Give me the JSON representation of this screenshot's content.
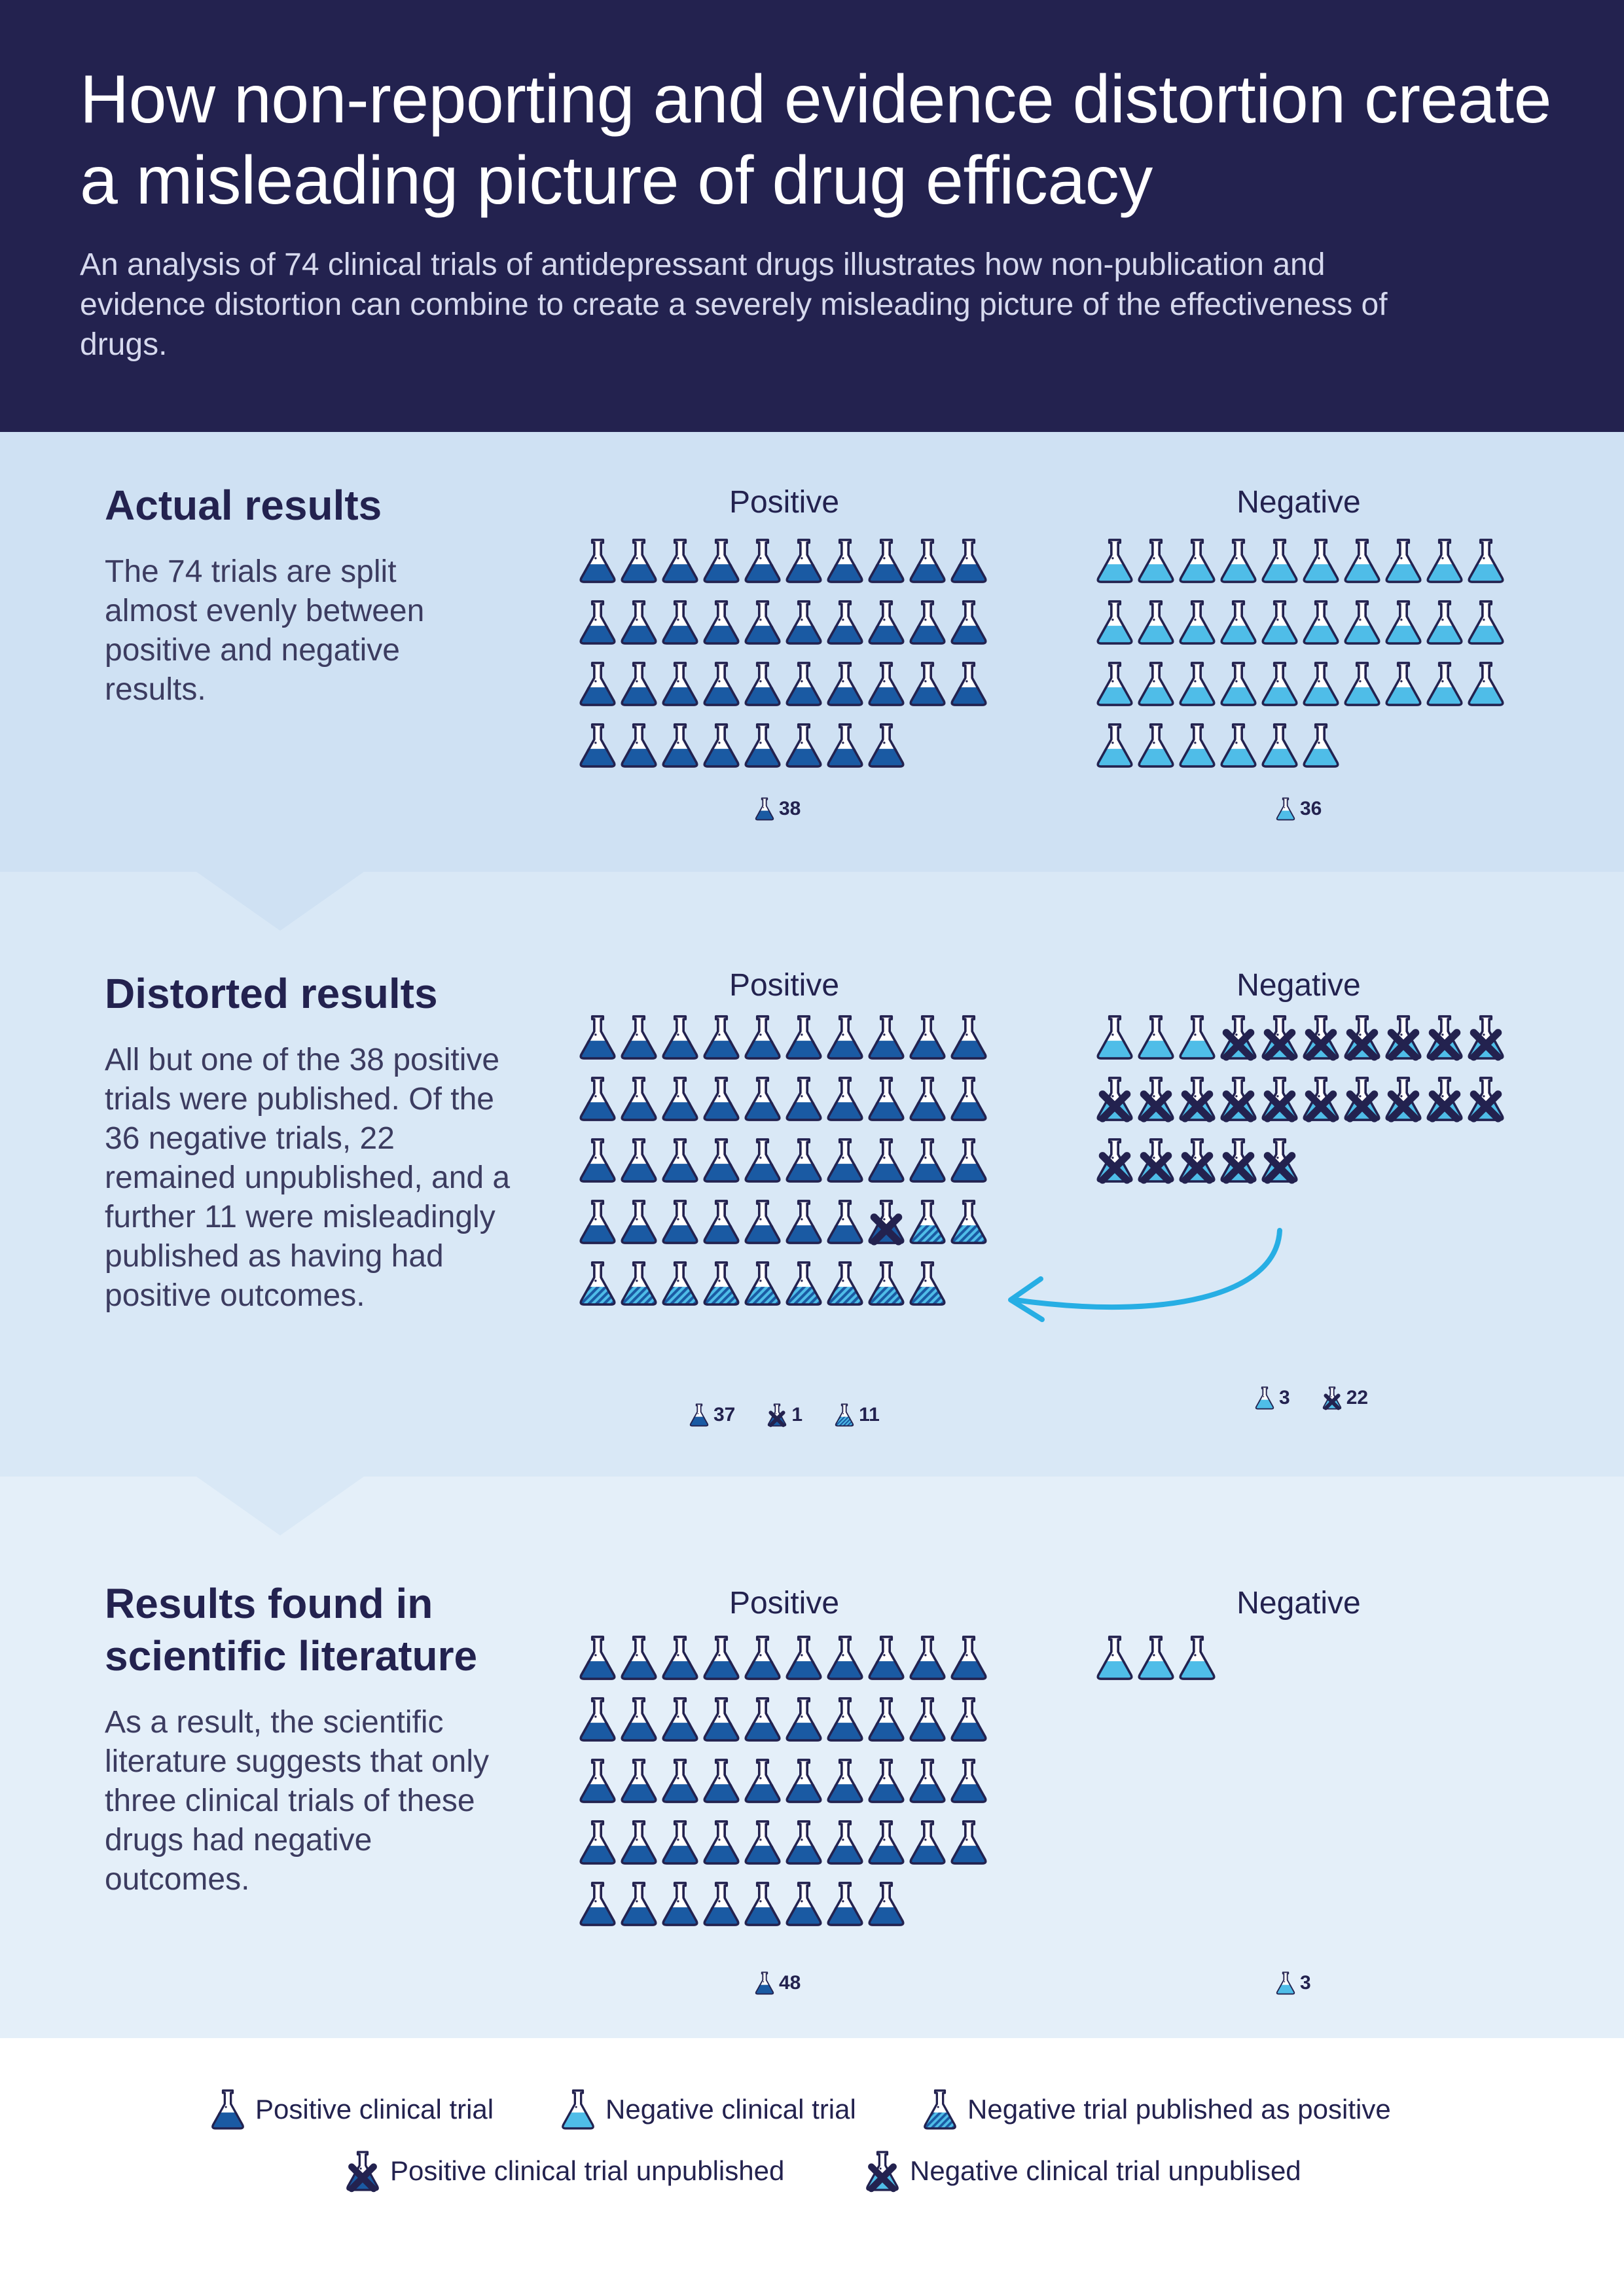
{
  "header": {
    "title": "How non-reporting and evidence distortion create a misleading picture of drug efficacy",
    "subtitle": "An analysis of 74 clinical trials of antidepressant drugs illustrates how non-publication and evidence distortion can combine to create a severely misleading picture of the effectiveness of drugs."
  },
  "colors": {
    "dark_navy": "#23224f",
    "positive_blue": "#1a5aa3",
    "negative_cyan": "#4fbde8",
    "arrow": "#27aee4"
  },
  "icons": {
    "positive": "flask-dark-icon",
    "negative": "flask-light-icon",
    "distorted": "flask-striped-icon",
    "unpublished": "flask-crossed-icon"
  },
  "sections": [
    {
      "heading": "Actual results",
      "description": "The 74 trials are split almost evenly between positive and negative results.",
      "positive_label": "Positive",
      "negative_label": "Negative",
      "positive": {
        "positive": 38
      },
      "negative": {
        "negative": 36
      },
      "positive_counts": [
        {
          "icon": "positive",
          "value": "38"
        }
      ],
      "negative_counts": [
        {
          "icon": "negative",
          "value": "36"
        }
      ]
    },
    {
      "heading": "Distorted results",
      "description": "All but one of the 38 positive trials were published. Of the 36 negative trials, 22 remained unpublished, and a further 11 were misleadingly published as having had positive outcomes.",
      "positive_label": "Positive",
      "negative_label": "Negative",
      "positive": {
        "positive": 37,
        "positive_unpublished": 1,
        "distorted": 11
      },
      "negative": {
        "negative": 3,
        "negative_unpublished": 22
      },
      "positive_counts": [
        {
          "icon": "positive",
          "value": "37"
        },
        {
          "icon": "positive_unpublished",
          "value": "1"
        },
        {
          "icon": "distorted",
          "value": "11"
        }
      ],
      "negative_counts": [
        {
          "icon": "negative",
          "value": "3"
        },
        {
          "icon": "negative_unpublished",
          "value": "22"
        }
      ]
    },
    {
      "heading": "Results found in scientific literature",
      "description": "As a result, the scientific literature suggests that only three clinical trials of these drugs had negative outcomes.",
      "positive_label": "Positive",
      "negative_label": "Negative",
      "positive": {
        "positive": 48
      },
      "negative": {
        "negative": 3
      },
      "positive_counts": [
        {
          "icon": "positive",
          "value": "48"
        }
      ],
      "negative_counts": [
        {
          "icon": "negative",
          "value": "3"
        }
      ]
    }
  ],
  "legend": [
    {
      "icon": "positive",
      "label": "Positive clinical trial"
    },
    {
      "icon": "negative",
      "label": "Negative clinical trial"
    },
    {
      "icon": "distorted",
      "label": "Negative trial published as positive"
    },
    {
      "icon": "positive_unpublished",
      "label": "Positive clinical trial unpublished"
    },
    {
      "icon": "negative_unpublished",
      "label": "Negative clinical trial unpublised"
    }
  ]
}
